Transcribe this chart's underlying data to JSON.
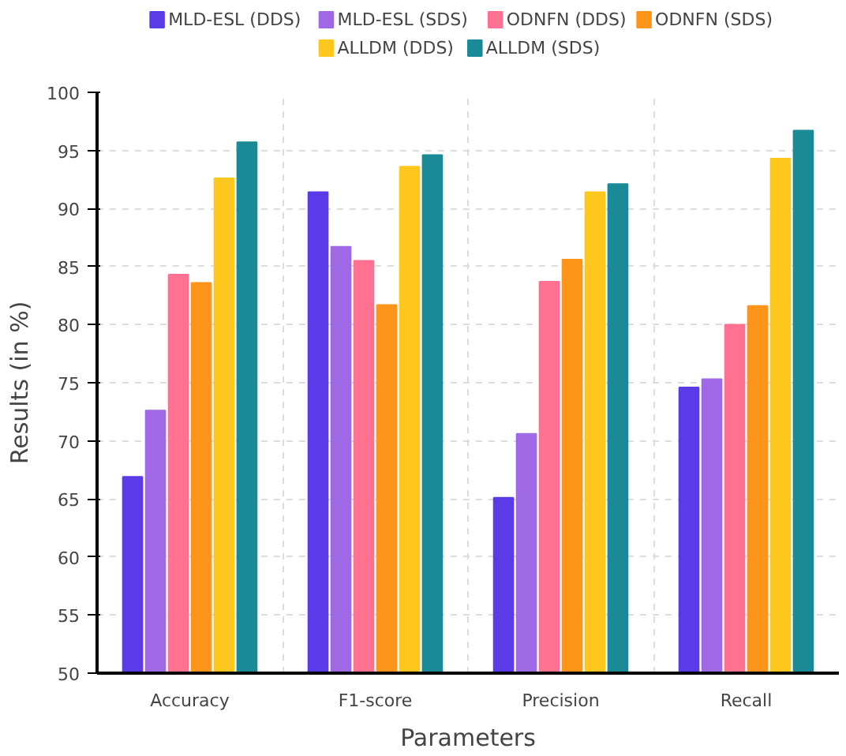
{
  "chart_data": {
    "type": "bar",
    "xlabel": "Parameters",
    "ylabel": "Results (in %)",
    "categories": [
      "Accuracy",
      "F1-score",
      "Precision",
      "Recall"
    ],
    "series": [
      {
        "name": "MLD-ESL (DDS)",
        "color": "#5b3be8",
        "values": [
          66.9,
          91.4,
          65.1,
          74.6
        ]
      },
      {
        "name": "MLD-ESL (SDS)",
        "color": "#9f69e6",
        "values": [
          72.6,
          86.7,
          70.6,
          75.3
        ]
      },
      {
        "name": "ODNFN (DDS)",
        "color": "#fe7191",
        "values": [
          84.3,
          85.5,
          83.7,
          80.0
        ]
      },
      {
        "name": "ODNFN (SDS)",
        "color": "#fe951b",
        "values": [
          83.6,
          81.7,
          85.6,
          81.6
        ]
      },
      {
        "name": "ALLDM (DDS)",
        "color": "#fec71e",
        "values": [
          92.6,
          93.6,
          91.4,
          94.3
        ]
      },
      {
        "name": "ALLDM (SDS)",
        "color": "#1a8a96",
        "values": [
          95.7,
          94.6,
          92.1,
          96.7
        ]
      }
    ],
    "ylim": [
      50,
      100
    ],
    "yticks": [
      50,
      55,
      60,
      65,
      70,
      75,
      80,
      85,
      90,
      95,
      100
    ],
    "grid": true,
    "legend": "top"
  }
}
